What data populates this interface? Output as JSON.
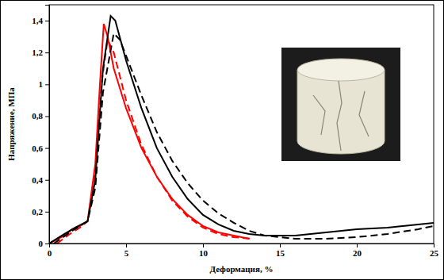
{
  "chart_data": {
    "type": "line",
    "x_label": "Деформация, %",
    "y_label": "Напряжение, МПа",
    "xlim": [
      0,
      25
    ],
    "xticks": [
      0,
      5,
      10,
      15,
      20,
      25
    ],
    "ylim": [
      0,
      1.5
    ],
    "yticks": [
      0,
      {
        "value": 0.2,
        "label": "0,2"
      },
      {
        "value": 0.4,
        "label": "0,4"
      },
      {
        "value": 0.6,
        "label": "0,6"
      },
      {
        "value": 0.8,
        "label": "0,8"
      },
      1,
      {
        "value": 1.2,
        "label": "1,2"
      },
      {
        "value": 1.4,
        "label": "1,4"
      }
    ],
    "grid": false,
    "series": [
      {
        "color": "#ff0000",
        "line_style": "solid",
        "x": [
          0,
          1,
          1.5,
          2,
          2.5,
          3,
          3.3,
          3.55,
          3.8,
          4.2,
          5,
          6,
          7,
          8,
          9,
          10,
          11,
          12,
          13
        ],
        "values": [
          0,
          0.05,
          0.09,
          0.11,
          0.14,
          0.5,
          1.0,
          1.38,
          1.3,
          1.1,
          0.85,
          0.6,
          0.42,
          0.28,
          0.18,
          0.11,
          0.07,
          0.05,
          0.03
        ]
      },
      {
        "color": "#ff0000",
        "line_style": "dashed",
        "x": [
          0.5,
          1.5,
          2,
          2.5,
          3,
          3.4,
          3.8,
          4.2,
          5,
          6,
          7,
          8,
          9,
          10,
          11,
          12,
          13.2
        ],
        "values": [
          0,
          0.07,
          0.1,
          0.14,
          0.45,
          1.0,
          1.28,
          1.2,
          0.9,
          0.62,
          0.42,
          0.27,
          0.17,
          0.1,
          0.06,
          0.04,
          0.03
        ]
      },
      {
        "color": "#000000",
        "line_style": "solid",
        "x": [
          0,
          1,
          1.7,
          2.5,
          3,
          3.5,
          4,
          4.3,
          5,
          6,
          7,
          8,
          9,
          10,
          11,
          12,
          13,
          14,
          15,
          16,
          18,
          20,
          22,
          25
        ],
        "values": [
          0,
          0.06,
          0.1,
          0.14,
          0.4,
          1.1,
          1.43,
          1.4,
          1.15,
          0.85,
          0.6,
          0.42,
          0.28,
          0.18,
          0.12,
          0.08,
          0.06,
          0.05,
          0.05,
          0.05,
          0.07,
          0.09,
          0.1,
          0.13
        ]
      },
      {
        "color": "#000000",
        "line_style": "dashed",
        "x": [
          0.3,
          1.5,
          2.5,
          3,
          3.5,
          4.2,
          4.6,
          5,
          6,
          7,
          8,
          9,
          10,
          11,
          12,
          13,
          14,
          15,
          16,
          18,
          20,
          22,
          24,
          25
        ],
        "values": [
          0,
          0.08,
          0.14,
          0.35,
          0.95,
          1.32,
          1.28,
          1.18,
          0.93,
          0.7,
          0.52,
          0.38,
          0.27,
          0.19,
          0.13,
          0.08,
          0.05,
          0.04,
          0.03,
          0.03,
          0.04,
          0.06,
          0.09,
          0.11
        ]
      }
    ]
  }
}
